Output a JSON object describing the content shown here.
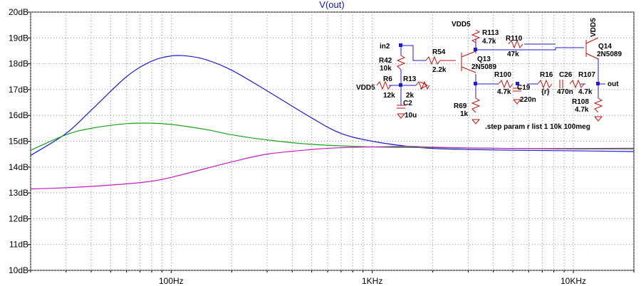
{
  "chart_data": {
    "type": "line",
    "title": "V(out)",
    "x_scale": "log",
    "x_unit": "Hz",
    "xlim": [
      20,
      20000
    ],
    "ylim": [
      10,
      20
    ],
    "y_ticks": [
      "20dB",
      "19dB",
      "18dB",
      "17dB",
      "16dB",
      "15dB",
      "14dB",
      "13dB",
      "12dB",
      "11dB",
      "10dB"
    ],
    "x_ticks": [
      {
        "x": 100,
        "label": "100Hz"
      },
      {
        "x": 1000,
        "label": "1KHz"
      },
      {
        "x": 10000,
        "label": "10KHz"
      }
    ],
    "grid": true,
    "series": [
      {
        "color": "#1c1ccf",
        "points": [
          [
            20,
            14.45
          ],
          [
            30,
            15.3
          ],
          [
            40,
            16.2
          ],
          [
            60,
            17.5
          ],
          [
            80,
            18.1
          ],
          [
            100,
            18.3
          ],
          [
            120,
            18.3
          ],
          [
            150,
            18.15
          ],
          [
            200,
            17.75
          ],
          [
            300,
            16.95
          ],
          [
            500,
            15.9
          ],
          [
            700,
            15.3
          ],
          [
            1000,
            15.0
          ],
          [
            1500,
            14.8
          ],
          [
            2000,
            14.72
          ],
          [
            3000,
            14.68
          ],
          [
            5000,
            14.65
          ],
          [
            10000,
            14.63
          ],
          [
            20000,
            14.6
          ]
        ]
      },
      {
        "color": "#16a316",
        "points": [
          [
            20,
            14.65
          ],
          [
            30,
            15.25
          ],
          [
            40,
            15.5
          ],
          [
            60,
            15.68
          ],
          [
            80,
            15.7
          ],
          [
            100,
            15.65
          ],
          [
            150,
            15.45
          ],
          [
            200,
            15.25
          ],
          [
            300,
            15.05
          ],
          [
            500,
            14.88
          ],
          [
            1000,
            14.78
          ],
          [
            2000,
            14.75
          ],
          [
            5000,
            14.72
          ],
          [
            10000,
            14.7
          ],
          [
            20000,
            14.7
          ]
        ]
      },
      {
        "color": "#c51cc5",
        "points": [
          [
            20,
            13.15
          ],
          [
            30,
            13.2
          ],
          [
            40,
            13.25
          ],
          [
            60,
            13.35
          ],
          [
            80,
            13.45
          ],
          [
            100,
            13.6
          ],
          [
            150,
            13.95
          ],
          [
            200,
            14.2
          ],
          [
            300,
            14.5
          ],
          [
            500,
            14.68
          ],
          [
            700,
            14.75
          ],
          [
            1000,
            14.78
          ],
          [
            1500,
            14.8
          ],
          [
            2000,
            14.77
          ],
          [
            3000,
            14.74
          ],
          [
            5000,
            14.72
          ],
          [
            10000,
            14.72
          ],
          [
            20000,
            14.73
          ]
        ]
      }
    ]
  },
  "schematic": {
    "labels": {
      "vdd5_top": "VDD5",
      "r113_name": "R113",
      "r113_val": "4.7k",
      "r110_name": "R110",
      "r110_val": "47k",
      "vdd5_right": "VDD5",
      "q14_name": "Q14",
      "q14_val": "2N5089",
      "in2": "in2",
      "r54_name": "R54",
      "r54_val": "2.2k",
      "q13_name": "Q13",
      "q13_val": "2N5089",
      "r42_name": "R42",
      "r42_val": "10k",
      "r6_name": "R6",
      "r6_val": "12k",
      "vdd5_left": "VDD5",
      "r13_name": "R13",
      "r13_val": "2k",
      "c2_name": "C2",
      "c2_val": "10u",
      "r100_name": "R100",
      "r100_val": "4.7k",
      "c19_name": "C19",
      "c19_val": "220n",
      "r16_name": "R16",
      "r16_val": "{r}",
      "c26_name": "C26",
      "c26_val": "470n",
      "r107_name": "R107",
      "r107_val": "4.7k",
      "out": "out",
      "r108_name": "R108",
      "r108_val": "4.7k",
      "r69_name": "R69",
      "r69_val": "1k",
      "step": ".step param r list 1 10k  100meg"
    }
  }
}
